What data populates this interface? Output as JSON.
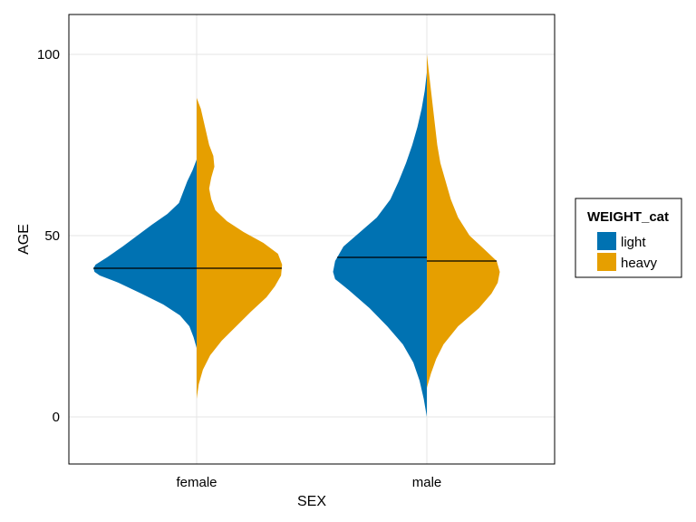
{
  "chart_data": {
    "type": "violin",
    "split": true,
    "xlabel": "SEX",
    "ylabel": "AGE",
    "categories": [
      "female",
      "male"
    ],
    "ylim": [
      -13,
      111
    ],
    "yticks": [
      0,
      50,
      100
    ],
    "grid": true,
    "legend": {
      "title": "WEIGHT_cat",
      "placement": "right",
      "entries": [
        {
          "label": "light",
          "color": "#0072b2"
        },
        {
          "label": "heavy",
          "color": "#e69f00"
        }
      ]
    },
    "series": [
      {
        "name": "light",
        "color": "#0072b2",
        "side": "left",
        "groups": [
          {
            "category": "female",
            "median": 41,
            "profile": [
              [
                19,
                0
              ],
              [
                22,
                0.03
              ],
              [
                25,
                0.07
              ],
              [
                28,
                0.16
              ],
              [
                31,
                0.32
              ],
              [
                34,
                0.53
              ],
              [
                37,
                0.75
              ],
              [
                39,
                0.93
              ],
              [
                40,
                0.98
              ],
              [
                41,
                0.99
              ],
              [
                42,
                0.97
              ],
              [
                44,
                0.86
              ],
              [
                47,
                0.71
              ],
              [
                50,
                0.57
              ],
              [
                53,
                0.43
              ],
              [
                56,
                0.28
              ],
              [
                59,
                0.17
              ],
              [
                62,
                0.13
              ],
              [
                65,
                0.09
              ],
              [
                68,
                0.04
              ],
              [
                71,
                0
              ]
            ]
          },
          {
            "category": "male",
            "median": 44,
            "profile": [
              [
                0,
                0
              ],
              [
                5,
                0.03
              ],
              [
                10,
                0.07
              ],
              [
                15,
                0.13
              ],
              [
                20,
                0.23
              ],
              [
                25,
                0.38
              ],
              [
                30,
                0.55
              ],
              [
                35,
                0.75
              ],
              [
                38,
                0.88
              ],
              [
                40,
                0.9
              ],
              [
                43,
                0.88
              ],
              [
                47,
                0.8
              ],
              [
                50,
                0.68
              ],
              [
                55,
                0.48
              ],
              [
                60,
                0.35
              ],
              [
                65,
                0.27
              ],
              [
                70,
                0.2
              ],
              [
                75,
                0.14
              ],
              [
                80,
                0.09
              ],
              [
                85,
                0.05
              ],
              [
                90,
                0.02
              ],
              [
                95,
                0
              ]
            ]
          }
        ]
      },
      {
        "name": "heavy",
        "color": "#e69f00",
        "side": "right",
        "groups": [
          {
            "category": "female",
            "median": 41,
            "profile": [
              [
                5,
                0
              ],
              [
                9,
                0.02
              ],
              [
                13,
                0.06
              ],
              [
                17,
                0.13
              ],
              [
                21,
                0.24
              ],
              [
                25,
                0.38
              ],
              [
                29,
                0.52
              ],
              [
                33,
                0.67
              ],
              [
                36,
                0.75
              ],
              [
                39,
                0.81
              ],
              [
                42,
                0.82
              ],
              [
                45,
                0.78
              ],
              [
                48,
                0.64
              ],
              [
                51,
                0.45
              ],
              [
                54,
                0.29
              ],
              [
                57,
                0.18
              ],
              [
                60,
                0.14
              ],
              [
                63,
                0.12
              ],
              [
                66,
                0.14
              ],
              [
                69,
                0.17
              ],
              [
                72,
                0.16
              ],
              [
                75,
                0.12
              ],
              [
                80,
                0.08
              ],
              [
                85,
                0.04
              ],
              [
                88,
                0
              ]
            ]
          },
          {
            "category": "male",
            "median": 43,
            "profile": [
              [
                8,
                0
              ],
              [
                12,
                0.04
              ],
              [
                16,
                0.09
              ],
              [
                20,
                0.16
              ],
              [
                25,
                0.3
              ],
              [
                30,
                0.5
              ],
              [
                34,
                0.62
              ],
              [
                37,
                0.68
              ],
              [
                40,
                0.7
              ],
              [
                43,
                0.67
              ],
              [
                46,
                0.56
              ],
              [
                50,
                0.41
              ],
              [
                55,
                0.3
              ],
              [
                60,
                0.23
              ],
              [
                65,
                0.18
              ],
              [
                70,
                0.13
              ],
              [
                75,
                0.1
              ],
              [
                80,
                0.08
              ],
              [
                85,
                0.06
              ],
              [
                90,
                0.04
              ],
              [
                95,
                0.02
              ],
              [
                100,
                0
              ]
            ]
          }
        ]
      }
    ]
  }
}
